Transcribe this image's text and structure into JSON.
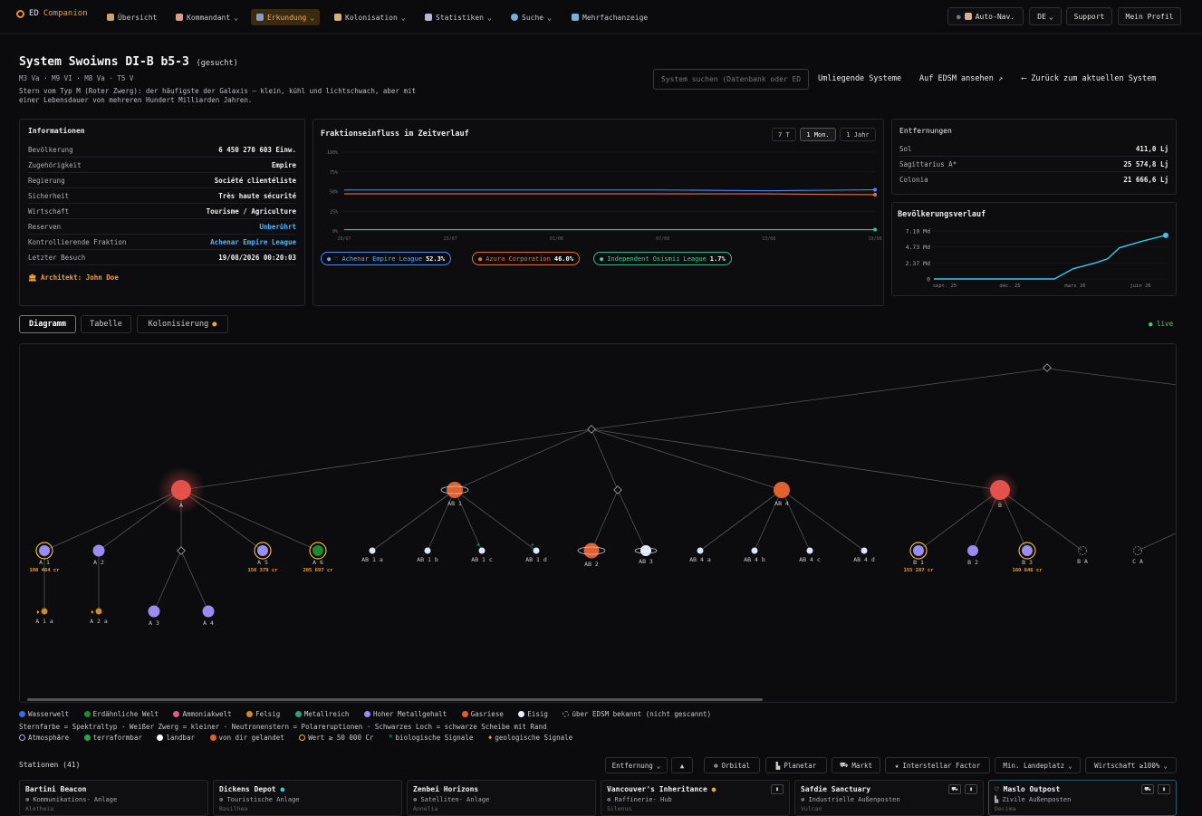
{
  "nav": {
    "brand_prefix": "ED",
    "brand_accent": "Companion",
    "items": [
      {
        "label": "Übersicht",
        "icon": "home-icon",
        "dropdown": false
      },
      {
        "label": "Kommandant",
        "icon": "commander-icon",
        "dropdown": true
      },
      {
        "label": "Erkundung",
        "icon": "ship-icon",
        "dropdown": true
      },
      {
        "label": "Kolonisation",
        "icon": "rocket-icon",
        "dropdown": true
      },
      {
        "label": "Statistiken",
        "icon": "stats-icon",
        "dropdown": true
      },
      {
        "label": "Suche",
        "icon": "search-icon",
        "dropdown": true
      },
      {
        "label": "Mehrfachanzeige",
        "icon": "monitor-icon",
        "dropdown": false
      }
    ],
    "auto_nav": "Auto-Nav.",
    "language": "DE",
    "support": "Support",
    "profile": "Mein Profil",
    "active_color": "#f0b050"
  },
  "header": {
    "title": "System Swoiwns DI-B b5-3",
    "title_suffix": "(gesucht)",
    "stars": "M3 Va · M9 VI · M8 Va · T5 V",
    "description": "Stern vom Typ M (Roter Zwerg): der häufigste der Galaxis — klein, kühl und lichtschwach, aber mit einer Lebensdauer von mehreren Hundert Milliarden Jahren.",
    "search_placeholder": "System suchen (Datenbank oder EDSM)",
    "nearby": "Umliegende Systeme",
    "edsm": "Auf EDSM ansehen ↗",
    "back": "⟵ Zurück zum aktuellen System"
  },
  "info": {
    "title": "Informationen",
    "rows": [
      {
        "k": "Bevölkerung",
        "v": "6 450 270 603 Einw."
      },
      {
        "k": "Zugehörigkeit",
        "v": "Empire"
      },
      {
        "k": "Regierung",
        "v": "Société clientéliste"
      },
      {
        "k": "Sicherheit",
        "v": "Très haute sécurité"
      },
      {
        "k": "Wirtschaft",
        "v": "Tourisme / Agriculture"
      },
      {
        "k": "Reserven",
        "v": "Unberührt"
      },
      {
        "k": "Kontrollierende Fraktion",
        "v": "Achenar Empire League"
      },
      {
        "k": "Letzter Besuch",
        "v": "19/08/2026 00:20:03"
      }
    ],
    "architect": "Architekt: John Doe"
  },
  "faction_chart": {
    "title": "Fraktionseinfluss im Zeitverlauf",
    "ranges": [
      "7 T",
      "1 Mon.",
      "1 Jahr"
    ],
    "active_range": "1 Mon.",
    "yticks": [
      "100%",
      "75%",
      "50%",
      "25%",
      "0%"
    ],
    "xticks": [
      "20/07",
      "25/07",
      "01/08",
      "07/08",
      "13/08",
      "19/08"
    ]
  },
  "chart_data": [
    {
      "type": "line",
      "title": "Fraktionseinfluss im Zeitverlauf",
      "x": [
        "20/07",
        "25/07",
        "01/08",
        "07/08",
        "13/08",
        "19/08"
      ],
      "ylim": [
        0,
        100
      ],
      "series": [
        {
          "name": "Achenar Empire League",
          "color": "#4a8cff",
          "values": [
            52,
            52,
            52,
            52,
            51,
            52.3
          ],
          "label": "52.3%"
        },
        {
          "name": "Azura Corporation",
          "color": "#f06a3a",
          "values": [
            47,
            47,
            47,
            47,
            47,
            46.0
          ],
          "label": "46.0%"
        },
        {
          "name": "Independent Osismii League",
          "color": "#2ec48a",
          "values": [
            1.7,
            1.7,
            1.7,
            1.7,
            1.7,
            1.7
          ],
          "label": "1.7%"
        }
      ]
    },
    {
      "type": "line",
      "title": "Bevölkerungsverlauf",
      "yticks": [
        "7.10 Md",
        "4.73 Md",
        "2.37 Md",
        "0"
      ],
      "xticks": [
        "sept. 25",
        "déc. 25",
        "mars 26",
        "juin 26"
      ],
      "ylim": [
        0,
        7.1
      ],
      "series": [
        {
          "name": "Bevölkerung",
          "color": "#3fc6ec",
          "x": [
            0,
            0.3,
            0.52,
            0.6,
            0.7,
            0.75,
            0.8,
            0.9,
            1.0
          ],
          "values": [
            0,
            0,
            0,
            1.5,
            2.4,
            3.0,
            4.6,
            5.6,
            6.45
          ]
        }
      ]
    }
  ],
  "distances": {
    "title": "Entfernungen",
    "rows": [
      {
        "k": "Sol",
        "v": "411,0 Lj"
      },
      {
        "k": "Sagittarius A*",
        "v": "25 574,8 Lj"
      },
      {
        "k": "Colonia",
        "v": "21 666,6 Lj"
      }
    ]
  },
  "population": {
    "title": "Bevölkerungsverlauf"
  },
  "tabs": [
    {
      "label": "Diagramm",
      "active": true
    },
    {
      "label": "Tabelle",
      "active": false
    },
    {
      "label": "Kolonisierung",
      "active": false
    }
  ],
  "live": "live",
  "diagram": {
    "labels": {
      "A": "A",
      "A1": "A 1",
      "A2": "A 2",
      "A5": "A 5",
      "A6": "A 6",
      "A3": "A 3",
      "A4": "A 4",
      "A1a": "A 1 a",
      "A2a": "A 2 a",
      "AB1": "AB 1",
      "AB1a": "AB 1 a",
      "AB1b": "AB 1 b",
      "AB1c": "AB 1 c",
      "AB1d": "AB 1 d",
      "AB2": "AB 2",
      "AB3": "AB 3",
      "AB4": "AB 4",
      "AB4a": "AB 4 a",
      "AB4b": "AB 4 b",
      "AB4c": "AB 4 c",
      "AB4d": "AB 4 d",
      "B": "B",
      "B1": "B 1",
      "B2": "B 2",
      "B3": "B 3",
      "BA": "B A",
      "CA": "C A"
    },
    "values": {
      "A1": "198 464 cr",
      "A5": "156 379 cr",
      "A6": "285 697 cr",
      "B1": "155 287 cr",
      "B3": "160 646 cr"
    }
  },
  "legend": {
    "types": [
      {
        "label": "Wasserwelt",
        "color": "#3a6ee8"
      },
      {
        "label": "Erdähnliche Welt",
        "color": "#1e8a2e"
      },
      {
        "label": "Ammoniakwelt",
        "color": "#e05a8a"
      },
      {
        "label": "Felsig",
        "color": "#d08a2a"
      },
      {
        "label": "Metallreich",
        "color": "#2aa37a"
      },
      {
        "label": "Hoher Metallgehalt",
        "color": "#9a8cf0"
      },
      {
        "label": "Gasriese",
        "color": "#e0602e"
      },
      {
        "label": "Eisig",
        "color": "#e6f0ff"
      },
      {
        "label": "über EDSM bekannt (nicht gescannt)",
        "color": "#888888"
      }
    ],
    "note": "Sternfarbe = Spektraltyp · Weißer Zwerg = kleiner · Neutronenstern = Polareruptionen · Schwarzes Loch = schwarze Scheibe mit Rand",
    "markers": [
      {
        "label": "Atmosphäre"
      },
      {
        "label": "terraformbar"
      },
      {
        "label": "landbar"
      },
      {
        "label": "von dir gelandet"
      },
      {
        "label": "Wert ≥ 50 000 Cr"
      },
      {
        "label": "biologische Signale"
      },
      {
        "label": "geologische Signale"
      }
    ]
  },
  "stations": {
    "title": "Stationen (41)",
    "sort": "Entfernung",
    "filters": [
      "Orbital",
      "Planetar",
      "Markt",
      "Interstellar Factor"
    ],
    "landing": "Min. Landeplatz",
    "economy": "Wirtschaft ≥100%",
    "cards": [
      {
        "name": "Bartini Beacon",
        "type": "Kommunikations- Anlage",
        "sub": "Aletheia"
      },
      {
        "name": "Dickens Depot",
        "type": "Touristische Anlage",
        "sub": "Basilhea"
      },
      {
        "name": "Zenbei Horizons",
        "type": "Satelliten- Anlage",
        "sub": "Annelia"
      },
      {
        "name": "Vancouver's Inheritance",
        "type": "Raffinerie- Hub",
        "sub": "Silenus"
      },
      {
        "name": "Safdie Sanctuary",
        "type": "Industrielle Außenposten",
        "sub": "Vulcan"
      },
      {
        "name": "Maslo Outpost",
        "type": "Zivile Außenposten",
        "sub": "Decima"
      }
    ]
  }
}
